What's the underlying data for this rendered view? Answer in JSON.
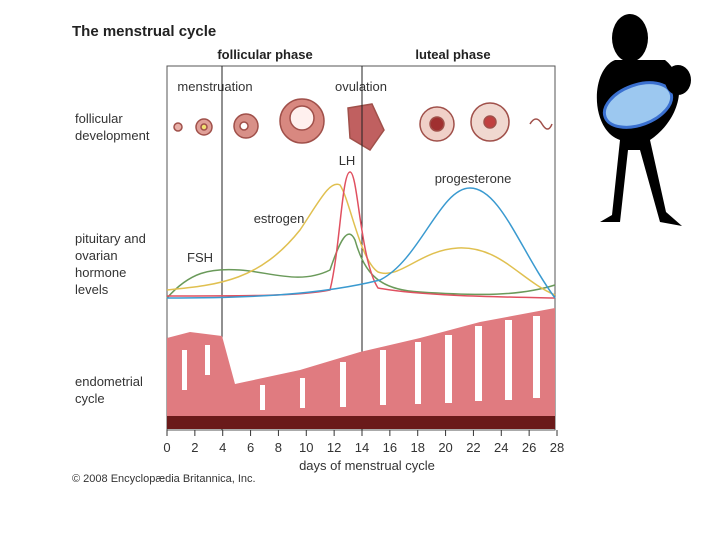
{
  "title": "The menstrual cycle",
  "phases": [
    "follicular phase",
    "luteal phase"
  ],
  "row_labels": [
    [
      "follicular",
      "development"
    ],
    [
      "pituitary and",
      "ovarian",
      "hormone",
      "levels"
    ],
    [
      "endometrial",
      "cycle"
    ]
  ],
  "stage_labels": [
    "menstruation",
    "ovulation"
  ],
  "curve_labels": [
    "LH",
    "progesterone",
    "estrogen",
    "FSH"
  ],
  "x_axis": {
    "ticks": [
      0,
      2,
      4,
      6,
      8,
      10,
      12,
      14,
      16,
      18,
      20,
      22,
      24,
      26,
      28
    ],
    "label": "days of menstrual cycle"
  },
  "copyright": "© 2008 Encyclopædia Britannica, Inc."
}
